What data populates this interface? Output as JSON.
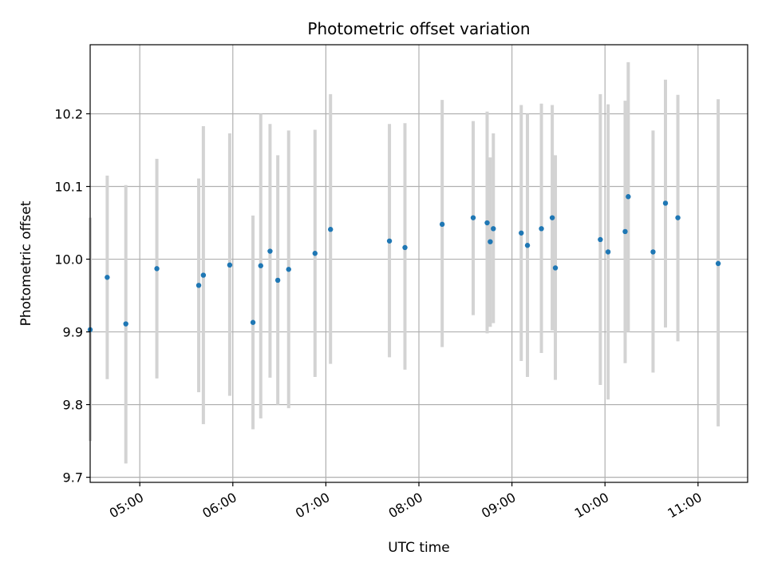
{
  "chart_data": {
    "type": "scatter",
    "title": "Photometric offset variation",
    "xlabel": "UTC time",
    "ylabel": "Photometric offset",
    "xlim": [
      "04:28",
      "11:32"
    ],
    "ylim": [
      9.693,
      10.295
    ],
    "grid": true,
    "x_tick_labels": [
      "05:00",
      "06:00",
      "07:00",
      "08:00",
      "09:00",
      "10:00",
      "11:00"
    ],
    "y_tick_labels": [
      "9.7",
      "9.8",
      "9.9",
      "10.0",
      "10.1",
      "10.2"
    ],
    "colors": {
      "points": "#1f77b4",
      "error_bars": "#d3d3d3",
      "grid": "#b0b0b0"
    },
    "series": [
      {
        "points": [
          {
            "t": "04:28",
            "y": 9.903,
            "lo": 9.75,
            "hi": 10.057
          },
          {
            "t": "04:39",
            "y": 9.975,
            "lo": 9.835,
            "hi": 10.115
          },
          {
            "t": "04:51",
            "y": 9.911,
            "lo": 9.719,
            "hi": 10.102
          },
          {
            "t": "05:11",
            "y": 9.987,
            "lo": 9.836,
            "hi": 10.138
          },
          {
            "t": "05:38",
            "y": 9.964,
            "lo": 9.817,
            "hi": 10.111
          },
          {
            "t": "05:41",
            "y": 9.978,
            "lo": 9.773,
            "hi": 10.183
          },
          {
            "t": "05:58",
            "y": 9.992,
            "lo": 9.812,
            "hi": 10.173
          },
          {
            "t": "06:13",
            "y": 9.913,
            "lo": 9.766,
            "hi": 10.06
          },
          {
            "t": "06:18",
            "y": 9.991,
            "lo": 9.781,
            "hi": 10.2
          },
          {
            "t": "06:24",
            "y": 10.011,
            "lo": 9.837,
            "hi": 10.186
          },
          {
            "t": "06:29",
            "y": 9.971,
            "lo": 9.8,
            "hi": 10.143
          },
          {
            "t": "06:36",
            "y": 9.986,
            "lo": 9.795,
            "hi": 10.177
          },
          {
            "t": "06:53",
            "y": 10.008,
            "lo": 9.838,
            "hi": 10.178
          },
          {
            "t": "07:03",
            "y": 10.041,
            "lo": 9.856,
            "hi": 10.227
          },
          {
            "t": "07:41",
            "y": 10.025,
            "lo": 9.865,
            "hi": 10.186
          },
          {
            "t": "07:51",
            "y": 10.016,
            "lo": 9.848,
            "hi": 10.187
          },
          {
            "t": "08:15",
            "y": 10.048,
            "lo": 9.879,
            "hi": 10.219
          },
          {
            "t": "08:35",
            "y": 10.057,
            "lo": 9.923,
            "hi": 10.19
          },
          {
            "t": "08:44",
            "y": 10.05,
            "lo": 9.898,
            "hi": 10.203
          },
          {
            "t": "08:46",
            "y": 10.024,
            "lo": 9.907,
            "hi": 10.14
          },
          {
            "t": "08:48",
            "y": 10.042,
            "lo": 9.912,
            "hi": 10.173
          },
          {
            "t": "09:06",
            "y": 10.036,
            "lo": 9.86,
            "hi": 10.212
          },
          {
            "t": "09:10",
            "y": 10.019,
            "lo": 9.838,
            "hi": 10.2
          },
          {
            "t": "09:19",
            "y": 10.042,
            "lo": 9.871,
            "hi": 10.214
          },
          {
            "t": "09:26",
            "y": 10.057,
            "lo": 9.902,
            "hi": 10.212
          },
          {
            "t": "09:28",
            "y": 9.988,
            "lo": 9.834,
            "hi": 10.143
          },
          {
            "t": "09:57",
            "y": 10.027,
            "lo": 9.827,
            "hi": 10.227
          },
          {
            "t": "10:02",
            "y": 10.01,
            "lo": 9.807,
            "hi": 10.213
          },
          {
            "t": "10:13",
            "y": 10.038,
            "lo": 9.857,
            "hi": 10.218
          },
          {
            "t": "10:15",
            "y": 10.086,
            "lo": 9.9,
            "hi": 10.271
          },
          {
            "t": "10:31",
            "y": 10.01,
            "lo": 9.844,
            "hi": 10.177
          },
          {
            "t": "10:39",
            "y": 10.077,
            "lo": 9.906,
            "hi": 10.247
          },
          {
            "t": "10:47",
            "y": 10.057,
            "lo": 9.887,
            "hi": 10.226
          },
          {
            "t": "11:13",
            "y": 9.994,
            "lo": 9.77,
            "hi": 10.22
          }
        ]
      }
    ]
  }
}
